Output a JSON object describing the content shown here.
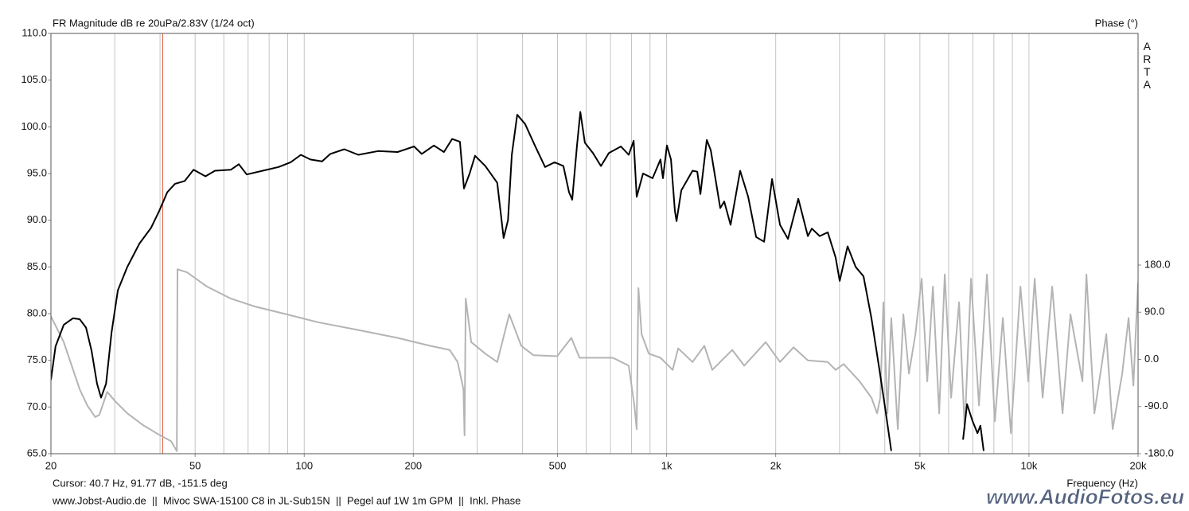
{
  "chart_data": {
    "type": "line",
    "title": "FR Magnitude dB re 20uPa/2.83V (1/24 oct)",
    "y2_label": "Phase (°)",
    "brand": "ARTA",
    "xlabel": "Frequency (Hz)",
    "cursor": {
      "label": "Cursor: 40.7 Hz, 91.77 dB, -151.5 deg",
      "x": 40.7,
      "color": "#e06040"
    },
    "footer": "www.Jobst-Audio.de  ||  Mivoc SWA-15100 C8 in JL-Sub15N  ||  Pegel auf 1W 1m GPM  ||  Inkl. Phase",
    "watermark": "www.AudioFotos.eu",
    "xscale": "log",
    "xlim": [
      20,
      20000
    ],
    "xticks": [
      20,
      50,
      100,
      200,
      500,
      {
        "value": 1000,
        "label": "1k"
      },
      {
        "value": 2000,
        "label": "2k"
      },
      {
        "value": 5000,
        "label": "5k"
      },
      {
        "value": 10000,
        "label": "10k"
      },
      {
        "value": 20000,
        "label": "20k"
      }
    ],
    "xgrid": [
      20,
      30,
      40,
      50,
      60,
      70,
      80,
      90,
      100,
      200,
      300,
      400,
      500,
      600,
      700,
      800,
      900,
      1000,
      2000,
      3000,
      4000,
      5000,
      6000,
      7000,
      8000,
      9000,
      10000,
      20000
    ],
    "ylim": [
      65,
      110
    ],
    "yticks": [
      {
        "value": 65,
        "label": "65.0"
      },
      {
        "value": 70,
        "label": "70.0"
      },
      {
        "value": 75,
        "label": "75.0"
      },
      {
        "value": 80,
        "label": "80.0"
      },
      {
        "value": 85,
        "label": "85.0"
      },
      {
        "value": 90,
        "label": "90.0"
      },
      {
        "value": 95,
        "label": "95.0"
      },
      {
        "value": 100,
        "label": "100.0"
      },
      {
        "value": 105,
        "label": "105.0"
      },
      {
        "value": 110,
        "label": "110.0"
      }
    ],
    "y2lim": [
      -180,
      622
    ],
    "y2ticks": [
      {
        "value": -180,
        "label": "-180.0"
      },
      {
        "value": -90,
        "label": "-90.0"
      },
      {
        "value": 0,
        "label": "0.0"
      },
      {
        "value": 90,
        "label": "90.0"
      },
      {
        "value": 180,
        "label": "180.0"
      }
    ],
    "grid": "x",
    "series": [
      {
        "name": "Magnitude",
        "color": "#000000",
        "x": [
          20,
          20.6,
          21.7,
          23.0,
          24.0,
          25.0,
          25.9,
          26.8,
          27.5,
          28.4,
          29.4,
          30.6,
          32.5,
          35.1,
          37.8,
          39.8,
          41.9,
          44.0,
          46.8,
          49.5,
          53.4,
          56.7,
          62.7,
          66.0,
          69.4,
          76.8,
          85.0,
          91.7,
          97.9,
          104,
          112,
          118,
          129,
          141,
          160,
          181,
          201,
          211,
          228,
          243,
          256,
          269,
          276,
          286,
          296,
          316,
          341,
          355,
          365,
          374,
          387,
          407,
          433,
          462,
          491,
          519,
          538,
          549,
          566,
          578,
          595,
          626,
          659,
          693,
          748,
          786,
          811,
          827,
          861,
          915,
          962,
          977,
          1002,
          1028,
          1054,
          1065,
          1098,
          1179,
          1215,
          1240,
          1291,
          1324,
          1406,
          1442,
          1502,
          1596,
          1679,
          1766,
          1858,
          1954,
          2056,
          2162,
          2309,
          2454,
          2516,
          2646,
          2784,
          2928,
          3004,
          3158,
          3323,
          3494,
          3676,
          3866,
          4006,
          4169,
          5000,
          6578,
          6745,
          6985,
          7210,
          7345,
          7500
        ],
        "values": [
          72.9,
          76.5,
          78.8,
          79.5,
          79.4,
          78.5,
          76,
          72.5,
          71,
          72.5,
          78,
          82.5,
          85,
          87.5,
          89.2,
          91,
          93,
          93.9,
          94.2,
          95.4,
          94.7,
          95.3,
          95.4,
          96,
          94.9,
          95.3,
          95.7,
          96.2,
          97.0,
          96.5,
          96.3,
          97.1,
          97.6,
          97,
          97.4,
          97.3,
          97.9,
          97.1,
          98,
          97.3,
          98.7,
          98.4,
          93.4,
          95,
          96.9,
          95.8,
          94,
          88.1,
          90,
          97,
          101.3,
          100.3,
          98,
          95.7,
          96.2,
          95.8,
          93,
          92.2,
          98,
          101.6,
          98.3,
          97.2,
          95.8,
          97.2,
          97.9,
          97,
          98.5,
          92.5,
          95,
          94.5,
          96.5,
          94.5,
          98,
          96.5,
          91,
          89.9,
          93.2,
          95.3,
          95.2,
          92.8,
          98.6,
          97.5,
          91.3,
          92,
          89.5,
          95.3,
          92.5,
          88.2,
          87.7,
          94.4,
          89.5,
          88,
          92.3,
          88.3,
          89.1,
          88.3,
          88.7,
          86,
          83.5,
          87.2,
          85,
          84,
          79.5,
          74,
          70,
          65.3,
          null,
          66.5,
          70.3,
          68.5,
          67.2,
          68,
          65.3
        ]
      },
      {
        "name": "Phase",
        "color": "#b4b4b4",
        "axis": "y2",
        "x": [
          20,
          21.7,
          24.0,
          25.2,
          26.5,
          27.2,
          28.6,
          30.1,
          32.5,
          36.0,
          39.8,
          42.9,
          44.5,
          44.7,
          47.5,
          53.9,
          62.7,
          73.0,
          89.4,
          109,
          141,
          181,
          222,
          252,
          265,
          275,
          277,
          279,
          289,
          316,
          341,
          368,
          397,
          429,
          499,
          546,
          575,
          711,
          786,
          815,
          827,
          836,
          853,
          893,
          962,
          1039,
          1076,
          1179,
          1271,
          1337,
          1518,
          1637,
          1877,
          2056,
          2240,
          2454,
          2784,
          2928,
          3080,
          3408,
          3676,
          3809,
          3888,
          3966,
          4068,
          4169,
          4346,
          4502,
          4665,
          4858,
          5058,
          5240,
          5432,
          5653,
          5856,
          6097,
          6413,
          6644,
          6919,
          7278,
          7656,
          8054,
          8472,
          8912,
          9470,
          9960,
          10370,
          10908,
          11588,
          12376,
          13018,
          14048,
          14406,
          15152,
          16346,
          17022,
          18088,
          18836,
          19410,
          20000
        ],
        "values": [
          82,
          33,
          -57,
          -88,
          -110,
          -106,
          -62,
          -80,
          -103,
          -126,
          -144,
          -156,
          -175,
          172,
          166,
          139,
          116,
          101,
          86,
          71,
          56,
          41,
          26,
          18,
          -5,
          -57,
          -145,
          116,
          33,
          11,
          -5,
          86,
          26,
          8,
          6,
          41,
          3,
          3,
          -12,
          -88,
          -133,
          136,
          48,
          11,
          3,
          -20,
          21,
          -5,
          26,
          -20,
          18,
          -12,
          33,
          -5,
          23,
          -2,
          -5,
          -20,
          -9,
          -42,
          -73,
          -103,
          -73,
          109,
          -103,
          79,
          -133,
          86,
          -27,
          48,
          154,
          -42,
          139,
          -103,
          162,
          -73,
          109,
          -133,
          154,
          -88,
          162,
          -118,
          79,
          -141,
          139,
          -42,
          154,
          -73,
          139,
          -103,
          86,
          -42,
          162,
          -103,
          48,
          -133,
          -27,
          79,
          -50,
          147
        ]
      }
    ]
  }
}
